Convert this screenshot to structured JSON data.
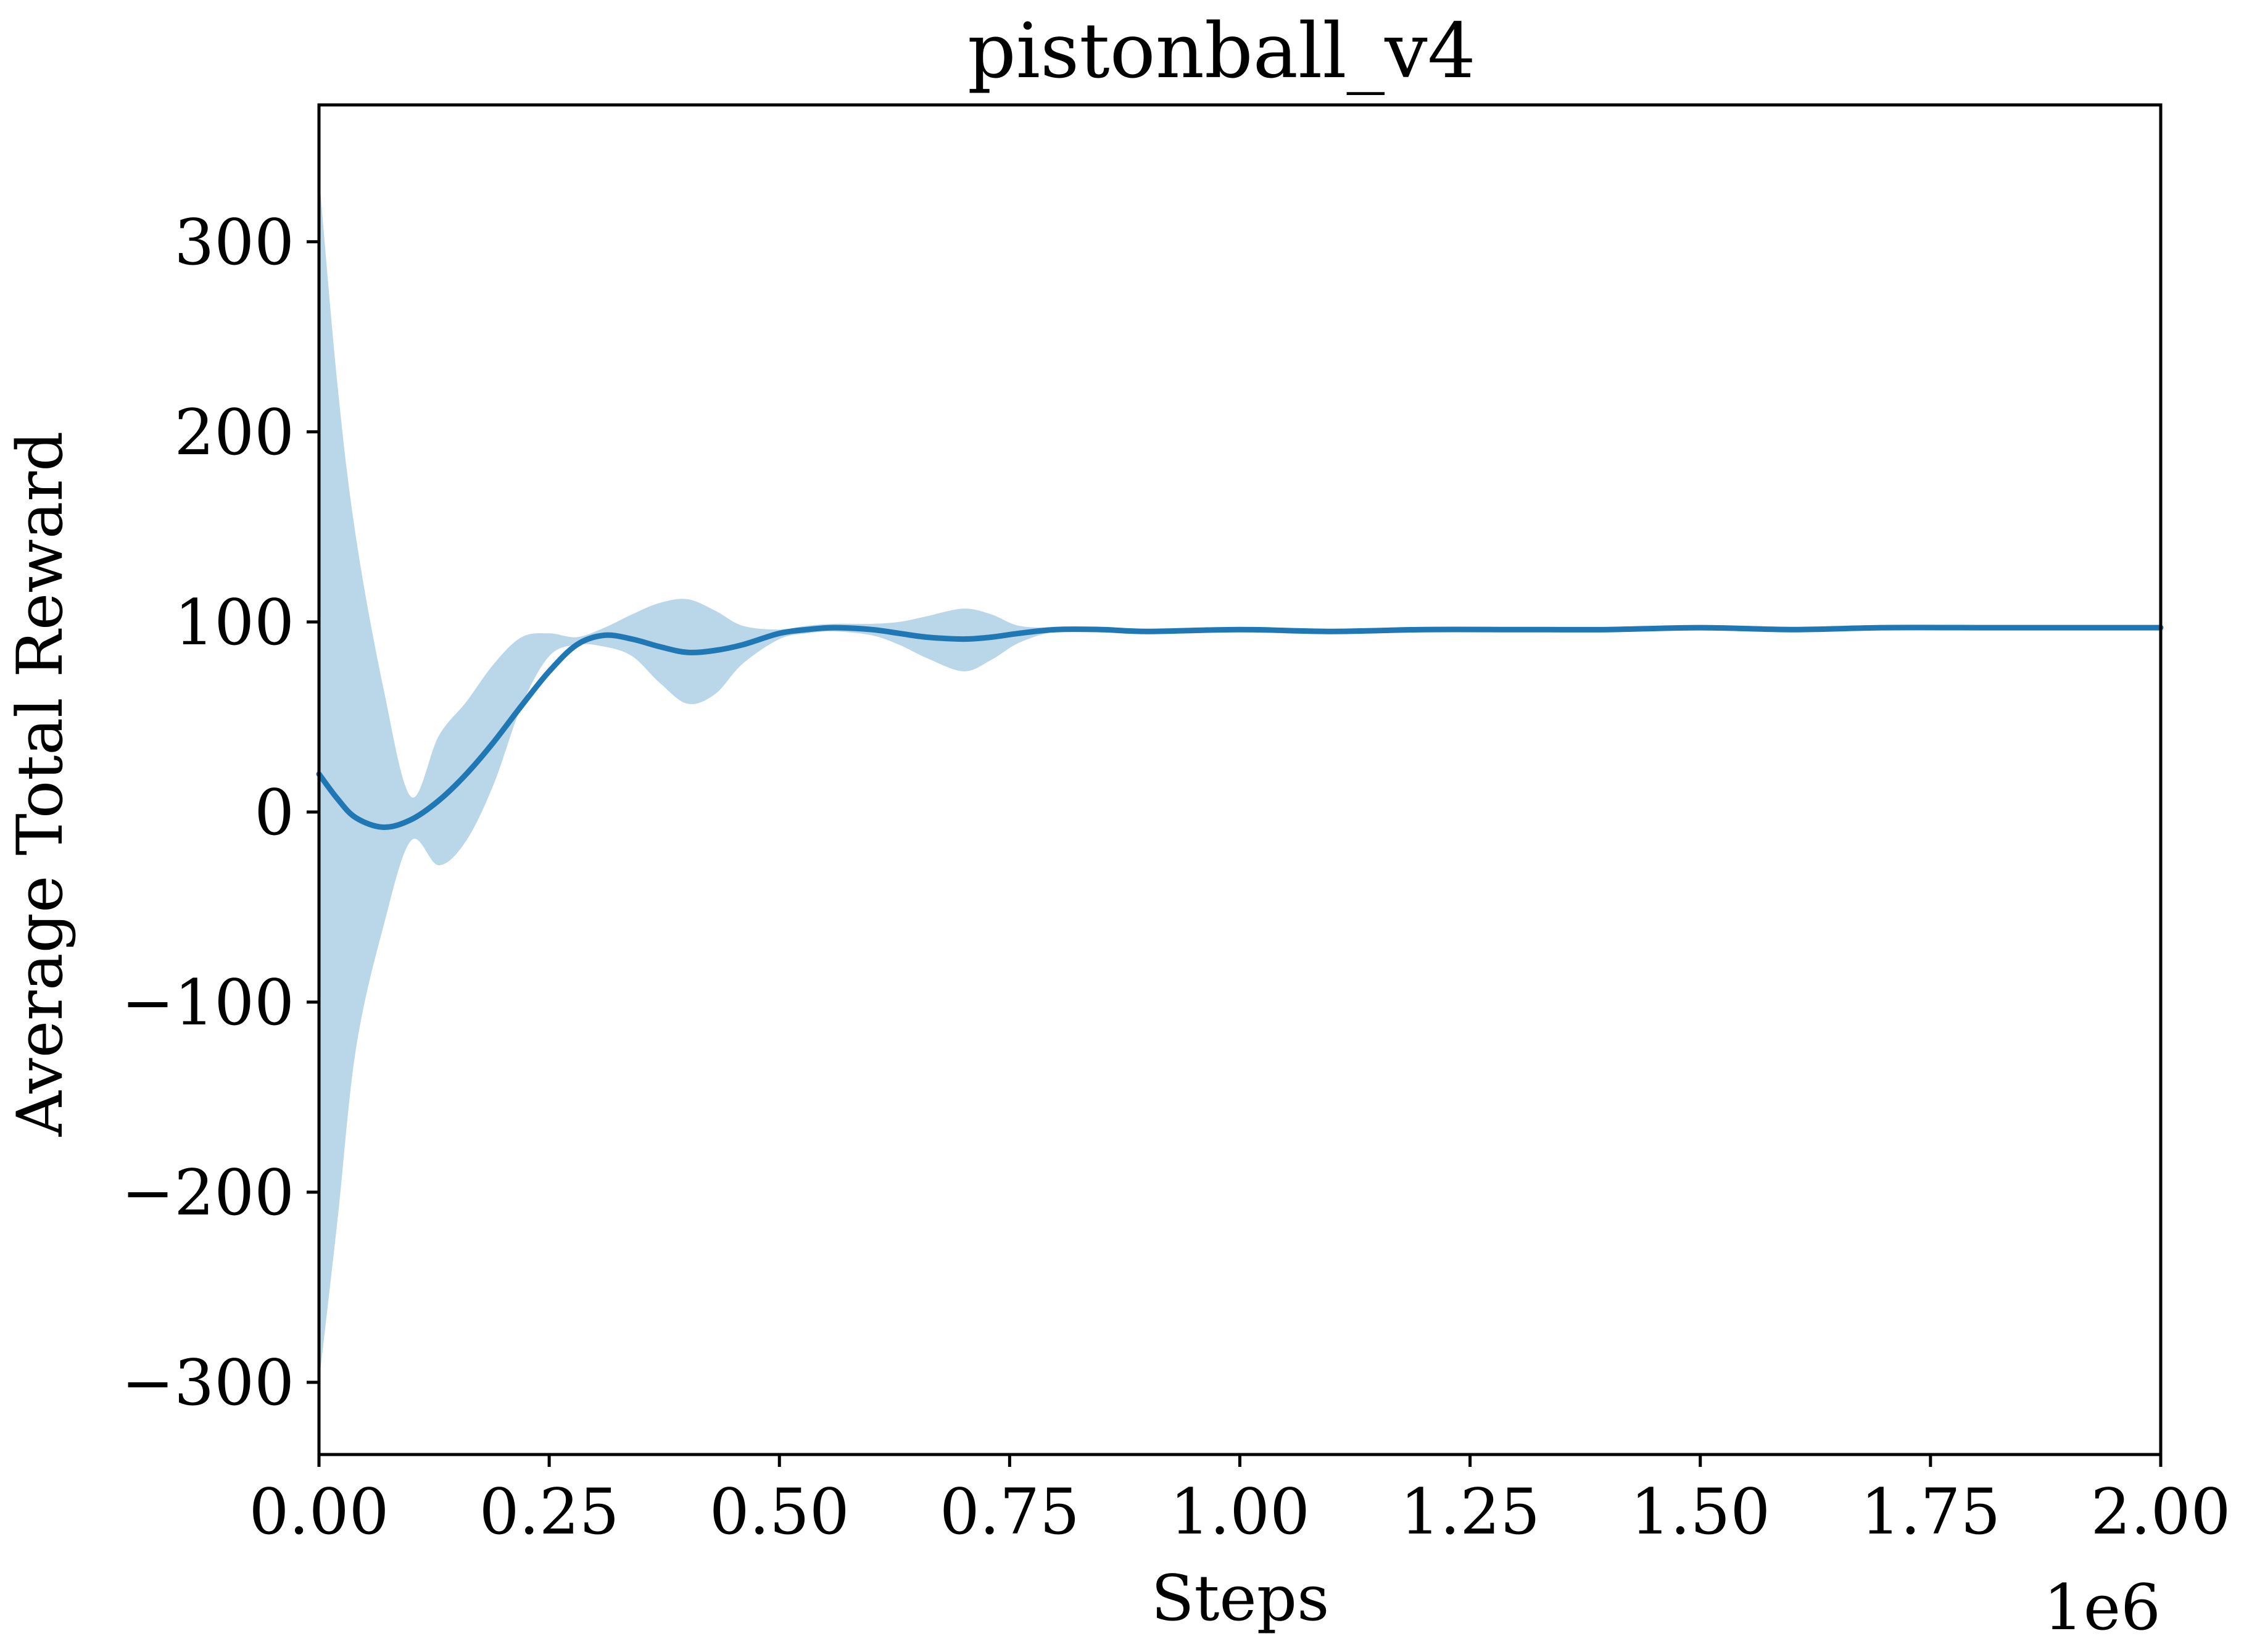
{
  "chart_data": {
    "type": "line",
    "title": "pistonball_v4",
    "xlabel": "Steps",
    "ylabel": "Average Total Reward",
    "x_offset_text": "1e6",
    "xlim": [
      0.0,
      2.0
    ],
    "ylim": [
      -338,
      372
    ],
    "x_ticks": [
      0.0,
      0.25,
      0.5,
      0.75,
      1.0,
      1.25,
      1.5,
      1.75,
      2.0
    ],
    "x_tick_labels": [
      "0.00",
      "0.25",
      "0.50",
      "0.75",
      "1.00",
      "1.25",
      "1.50",
      "1.75",
      "2.00"
    ],
    "y_ticks": [
      -300,
      -200,
      -100,
      0,
      100,
      200,
      300
    ],
    "y_tick_labels": [
      "−300",
      "−200",
      "−100",
      "0",
      "100",
      "200",
      "300"
    ],
    "grid": false,
    "colors": {
      "line": "#1f77b4",
      "band": "#a9cce4"
    },
    "series": [
      {
        "x": [
          0.0,
          0.02,
          0.04,
          0.07,
          0.1,
          0.13,
          0.16,
          0.19,
          0.22,
          0.25,
          0.28,
          0.31,
          0.34,
          0.37,
          0.4,
          0.43,
          0.46,
          0.5,
          0.53,
          0.56,
          0.6,
          0.63,
          0.66,
          0.7,
          0.73,
          0.76,
          0.8,
          0.85,
          0.9,
          1.0,
          1.1,
          1.2,
          1.3,
          1.4,
          1.5,
          1.6,
          1.7,
          1.8,
          1.9,
          2.0
        ],
        "values": [
          20,
          7,
          -3,
          -8,
          -4,
          6,
          20,
          37,
          56,
          74,
          88,
          93,
          91,
          87,
          84,
          85,
          88,
          94,
          96,
          97,
          96,
          94,
          92,
          91,
          92,
          94,
          96,
          96,
          95,
          96,
          95,
          96,
          96,
          96,
          97,
          96,
          97,
          97,
          97,
          97
        ],
        "lower": [
          -300,
          -215,
          -125,
          -60,
          -15,
          -28,
          -15,
          15,
          56,
          82,
          88,
          87,
          82,
          68,
          57,
          62,
          78,
          91,
          94,
          95,
          93,
          88,
          81,
          74,
          80,
          89,
          95,
          96,
          95,
          96,
          95,
          96,
          96,
          96,
          97,
          96,
          97,
          97,
          97,
          97
        ],
        "upper": [
          335,
          225,
          145,
          65,
          8,
          40,
          58,
          78,
          92,
          94,
          92,
          97,
          104,
          110,
          112,
          106,
          98,
          96,
          98,
          99,
          99,
          100,
          103,
          107,
          104,
          98,
          97,
          97,
          96,
          97,
          96,
          97,
          97,
          97,
          98,
          97,
          98,
          98,
          98,
          98
        ]
      }
    ]
  }
}
